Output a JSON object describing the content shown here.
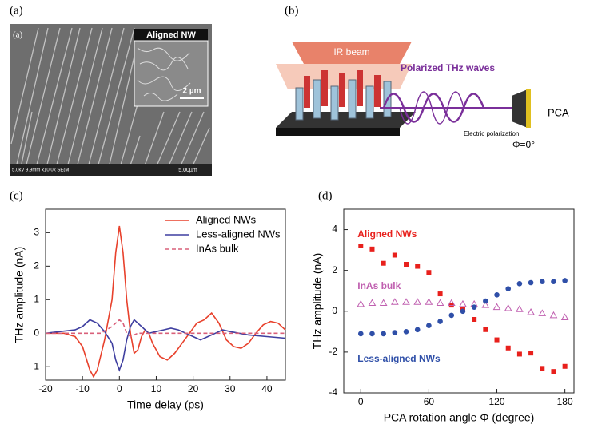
{
  "panels": {
    "a": {
      "label": "(a)",
      "inner_label": "(a)",
      "inset_title": "Aligned NW",
      "inset_scale": "2 µm",
      "info": "5.0kV 9.9mm x10.0k SE(M)",
      "scale": "5.00µm"
    },
    "b": {
      "label": "(b)",
      "beam": "IR beam",
      "waves": "Polarized THz waves",
      "detector": "PCA",
      "polarization": "Electric polarization",
      "angle": "Φ=0°"
    },
    "c": {
      "label": "(c)"
    },
    "d": {
      "label": "(d)"
    }
  },
  "chart_data": [
    {
      "type": "line",
      "xlabel": "Time delay (ps)",
      "ylabel": "THz amplitude (nA)",
      "xlim": [
        -20,
        45
      ],
      "xticks": [
        -20,
        -10,
        0,
        10,
        20,
        30,
        40
      ],
      "ylim": [
        -1.4,
        3.7
      ],
      "yticks": [
        -1,
        0,
        1,
        2,
        3
      ],
      "legend": "upper right",
      "series": [
        {
          "name": "Aligned NWs",
          "color": "#e8412c",
          "dash": false,
          "x": [
            -20,
            -15,
            -12,
            -10,
            -8,
            -7,
            -6,
            -4,
            -2,
            -1,
            0,
            1,
            2,
            3,
            4,
            5,
            6,
            7,
            8,
            9,
            11,
            13,
            15,
            17,
            19,
            21,
            23,
            25,
            27,
            29,
            31,
            33,
            35,
            37,
            39,
            41,
            43,
            45
          ],
          "values": [
            0,
            0,
            -0.1,
            -0.4,
            -1.1,
            -1.3,
            -1.1,
            -0.2,
            1.0,
            2.4,
            3.2,
            2.4,
            1.0,
            0.0,
            -0.6,
            -0.5,
            -0.1,
            0.1,
            0.0,
            -0.3,
            -0.7,
            -0.8,
            -0.6,
            -0.3,
            0.0,
            0.3,
            0.4,
            0.6,
            0.3,
            -0.2,
            -0.4,
            -0.45,
            -0.3,
            0.0,
            0.25,
            0.35,
            0.3,
            0.1
          ]
        },
        {
          "name": "Less-aligned NWs",
          "color": "#3f3fa0",
          "dash": false,
          "x": [
            -20,
            -12,
            -10,
            -8,
            -6,
            -4,
            -2,
            -1,
            0,
            1,
            2,
            3,
            4,
            6,
            8,
            10,
            12,
            14,
            16,
            18,
            20,
            22,
            24,
            26,
            28,
            30,
            35,
            40,
            45
          ],
          "values": [
            0,
            0.1,
            0.2,
            0.4,
            0.3,
            0.05,
            -0.3,
            -0.8,
            -1.1,
            -0.8,
            -0.2,
            0.2,
            0.4,
            0.2,
            0.0,
            0.05,
            0.1,
            0.15,
            0.1,
            0.0,
            -0.1,
            -0.2,
            -0.1,
            0.0,
            0.1,
            0.05,
            -0.05,
            -0.1,
            -0.15
          ]
        },
        {
          "name": "InAs bulk",
          "color": "#d9607a",
          "dash": true,
          "x": [
            -20,
            -5,
            -2,
            0,
            1,
            2,
            3,
            5,
            45
          ],
          "values": [
            0,
            0,
            0.2,
            0.4,
            0.3,
            0.0,
            -0.1,
            0,
            0
          ]
        }
      ]
    },
    {
      "type": "scatter",
      "xlabel": "PCA rotation angle Φ (degree)",
      "ylabel": "THz amplitude (nA)",
      "xlim": [
        -15,
        188
      ],
      "xticks": [
        0,
        60,
        120,
        180
      ],
      "ylim": [
        -4,
        5
      ],
      "yticks": [
        -4,
        -2,
        0,
        2,
        4
      ],
      "legend": "annotations",
      "x": [
        0,
        10,
        20,
        30,
        40,
        50,
        60,
        70,
        80,
        90,
        100,
        110,
        120,
        130,
        140,
        150,
        160,
        170,
        180
      ],
      "series": [
        {
          "name": "Aligned NWs",
          "color": "#e8201c",
          "marker": "square",
          "values": [
            3.2,
            3.05,
            2.35,
            2.75,
            2.3,
            2.2,
            1.9,
            0.85,
            0.3,
            0.1,
            -0.4,
            -0.9,
            -1.4,
            -1.8,
            -2.1,
            -2.05,
            -2.8,
            -2.95,
            -2.7
          ]
        },
        {
          "name": "InAs bulk",
          "color": "#c060b0",
          "marker": "triangle",
          "values": [
            0.35,
            0.4,
            0.4,
            0.45,
            0.45,
            0.45,
            0.45,
            0.4,
            0.4,
            0.35,
            0.35,
            0.3,
            0.2,
            0.15,
            0.1,
            -0.05,
            -0.1,
            -0.2,
            -0.3
          ]
        },
        {
          "name": "Less-aligned NWs",
          "color": "#2f4fa8",
          "marker": "circle",
          "values": [
            -1.1,
            -1.1,
            -1.1,
            -1.05,
            -1.0,
            -0.9,
            -0.7,
            -0.5,
            -0.2,
            0.0,
            0.2,
            0.5,
            0.8,
            1.1,
            1.35,
            1.4,
            1.45,
            1.45,
            1.5
          ]
        }
      ]
    }
  ]
}
